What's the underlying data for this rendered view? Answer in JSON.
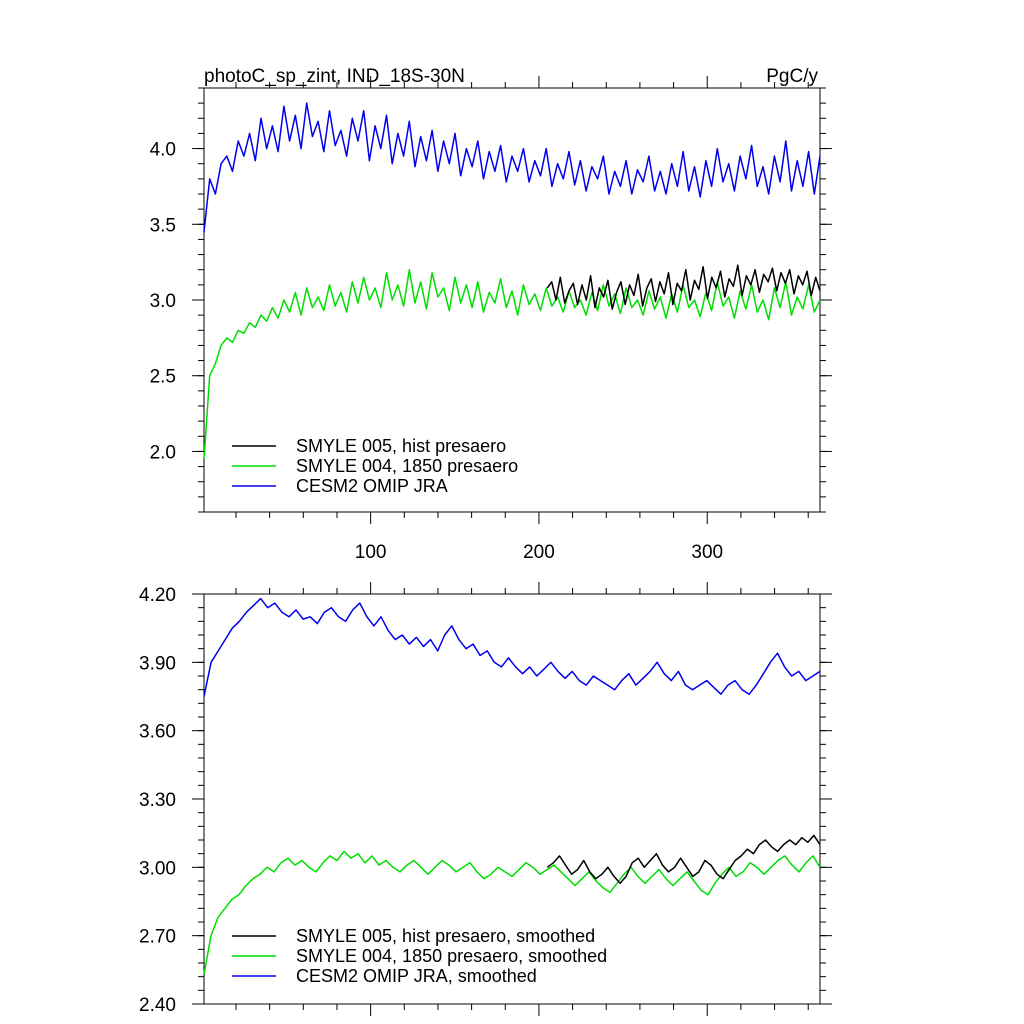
{
  "chart_data": [
    {
      "type": "line",
      "title": "photoC_sp_zint, IND_18S-30N",
      "units": "PgC/y",
      "xlim": [
        1,
        367
      ],
      "ylim": [
        1.6,
        4.4
      ],
      "x_ticks": [
        100,
        200,
        300
      ],
      "x_tick_labels": [
        "100",
        "200",
        "300"
      ],
      "y_ticks": [
        2.0,
        2.5,
        3.0,
        3.5,
        4.0
      ],
      "y_tick_labels": [
        "2.0",
        "2.5",
        "3.0",
        "3.5",
        "4.0"
      ],
      "legend_position": "lower-left",
      "series": [
        {
          "name": "SMYLE 005, hist presaero",
          "color": "#000000",
          "x_start": 205,
          "x_end": 367,
          "values": [
            3.08,
            3.12,
            3.0,
            3.15,
            2.98,
            3.06,
            3.11,
            2.97,
            3.1,
            3.0,
            3.16,
            2.95,
            3.08,
            3.02,
            3.13,
            2.94,
            3.05,
            3.12,
            2.97,
            3.1,
            3.03,
            3.17,
            2.96,
            3.08,
            3.14,
            2.99,
            3.12,
            3.04,
            3.18,
            2.97,
            3.11,
            3.06,
            3.2,
            3.0,
            3.13,
            3.07,
            3.22,
            3.01,
            3.15,
            3.08,
            3.19,
            3.02,
            3.14,
            3.09,
            3.23,
            3.03,
            3.16,
            3.1,
            3.2,
            3.05,
            3.17,
            3.12,
            3.21,
            3.06,
            3.18,
            3.11,
            3.2,
            3.04,
            3.16,
            3.1,
            3.19,
            3.03,
            3.15,
            3.06
          ]
        },
        {
          "name": "SMYLE 004, 1850 presaero",
          "color": "#00dd00",
          "x_start": 1,
          "x_end": 367,
          "values": [
            1.95,
            2.5,
            2.58,
            2.7,
            2.75,
            2.72,
            2.8,
            2.78,
            2.85,
            2.82,
            2.9,
            2.86,
            2.95,
            2.88,
            3.0,
            2.92,
            3.05,
            2.9,
            3.08,
            2.95,
            3.02,
            2.93,
            3.1,
            2.96,
            3.05,
            2.92,
            3.12,
            2.98,
            3.15,
            3.0,
            3.08,
            2.95,
            3.18,
            3.0,
            3.1,
            2.96,
            3.2,
            2.98,
            3.12,
            2.94,
            3.18,
            3.02,
            3.08,
            2.93,
            3.15,
            2.98,
            3.1,
            2.95,
            3.12,
            2.92,
            3.05,
            2.98,
            3.14,
            2.95,
            3.06,
            2.9,
            3.1,
            2.97,
            3.04,
            2.93,
            3.08,
            2.96,
            3.02,
            2.92,
            3.06,
            2.95,
            3.0,
            2.9,
            3.05,
            2.93,
            3.1,
            2.96,
            3.04,
            2.91,
            3.08,
            2.95,
            3.0,
            2.9,
            3.06,
            2.94,
            3.02,
            2.88,
            3.04,
            2.92,
            3.1,
            2.95,
            3.0,
            2.89,
            3.05,
            2.93,
            3.12,
            2.96,
            3.02,
            2.88,
            3.06,
            2.94,
            3.1,
            2.92,
            3.0,
            2.87,
            3.08,
            2.95,
            3.12,
            2.9,
            3.02,
            2.94,
            3.1,
            2.92,
            3.0
          ]
        },
        {
          "name": "CESM2 OMIP JRA",
          "color": "#0000ee",
          "x_start": 1,
          "x_end": 367,
          "values": [
            3.45,
            3.8,
            3.7,
            3.9,
            3.95,
            3.85,
            4.05,
            3.95,
            4.1,
            3.92,
            4.2,
            4.0,
            4.15,
            3.98,
            4.28,
            4.05,
            4.22,
            4.0,
            4.3,
            4.08,
            4.18,
            3.98,
            4.25,
            4.02,
            4.12,
            3.95,
            4.2,
            4.05,
            4.25,
            3.92,
            4.15,
            4.0,
            4.22,
            3.9,
            4.1,
            3.95,
            4.18,
            3.88,
            4.08,
            3.92,
            4.12,
            3.85,
            4.05,
            3.9,
            4.1,
            3.82,
            4.0,
            3.88,
            4.05,
            3.8,
            3.98,
            3.85,
            4.02,
            3.78,
            3.95,
            3.85,
            4.0,
            3.78,
            3.92,
            3.82,
            4.0,
            3.75,
            3.9,
            3.8,
            3.98,
            3.76,
            3.92,
            3.72,
            3.88,
            3.8,
            3.95,
            3.7,
            3.85,
            3.75,
            3.92,
            3.7,
            3.86,
            3.78,
            3.95,
            3.72,
            3.85,
            3.7,
            3.9,
            3.75,
            3.98,
            3.72,
            3.88,
            3.68,
            3.92,
            3.75,
            4.0,
            3.78,
            3.9,
            3.72,
            3.95,
            3.8,
            4.02,
            3.75,
            3.88,
            3.7,
            3.95,
            3.78,
            4.05,
            3.72,
            3.92,
            3.75,
            3.98,
            3.7,
            3.95
          ]
        }
      ]
    },
    {
      "type": "line",
      "xlim": [
        1,
        367
      ],
      "ylim": [
        2.4,
        4.2
      ],
      "x_ticks": [
        100,
        200,
        300
      ],
      "y_ticks": [
        2.4,
        2.7,
        3.0,
        3.3,
        3.6,
        3.9,
        4.2
      ],
      "y_tick_labels": [
        "2.40",
        "2.70",
        "3.00",
        "3.30",
        "3.60",
        "3.90",
        "4.20"
      ],
      "legend_position": "lower-left",
      "series": [
        {
          "name": "SMYLE 005, hist presaero, smoothed",
          "color": "#000000",
          "x_start": 205,
          "x_end": 367,
          "values": [
            3.0,
            3.02,
            3.05,
            3.01,
            2.97,
            2.99,
            3.03,
            2.98,
            2.95,
            2.97,
            3.0,
            2.96,
            2.93,
            2.96,
            3.02,
            3.04,
            3.0,
            3.03,
            3.06,
            3.01,
            2.98,
            3.0,
            3.04,
            3.0,
            2.96,
            2.98,
            3.03,
            3.01,
            2.97,
            2.95,
            2.99,
            3.03,
            3.05,
            3.08,
            3.06,
            3.1,
            3.12,
            3.09,
            3.07,
            3.1,
            3.12,
            3.1,
            3.13,
            3.11,
            3.14,
            3.1
          ]
        },
        {
          "name": "SMYLE 004, 1850 presaero, smoothed",
          "color": "#00dd00",
          "x_start": 1,
          "x_end": 367,
          "values": [
            2.53,
            2.7,
            2.78,
            2.82,
            2.86,
            2.88,
            2.92,
            2.95,
            2.97,
            3.0,
            2.98,
            3.02,
            3.04,
            3.01,
            3.03,
            3.0,
            2.98,
            3.02,
            3.05,
            3.03,
            3.07,
            3.04,
            3.06,
            3.02,
            3.05,
            3.01,
            3.03,
            3.0,
            2.98,
            3.01,
            3.03,
            3.0,
            2.97,
            3.0,
            3.03,
            3.01,
            2.98,
            3.0,
            3.02,
            2.98,
            2.95,
            2.97,
            3.0,
            2.98,
            2.96,
            2.99,
            3.02,
            3.0,
            2.97,
            2.99,
            3.01,
            2.98,
            2.95,
            2.92,
            2.95,
            2.98,
            2.94,
            2.91,
            2.89,
            2.93,
            2.97,
            3.0,
            2.96,
            2.93,
            2.96,
            2.99,
            2.95,
            2.92,
            2.95,
            2.98,
            2.94,
            2.9,
            2.88,
            2.93,
            2.97,
            3.0,
            2.96,
            2.98,
            3.02,
            3.0,
            2.97,
            3.0,
            3.03,
            3.05,
            3.01,
            2.98,
            3.02,
            3.05,
            3.0
          ]
        },
        {
          "name": "CESM2 OMIP JRA, smoothed",
          "color": "#0000ee",
          "x_start": 1,
          "x_end": 367,
          "values": [
            3.75,
            3.9,
            3.95,
            4.0,
            4.05,
            4.08,
            4.12,
            4.15,
            4.18,
            4.14,
            4.16,
            4.12,
            4.1,
            4.13,
            4.09,
            4.1,
            4.07,
            4.12,
            4.14,
            4.1,
            4.08,
            4.13,
            4.16,
            4.1,
            4.06,
            4.1,
            4.04,
            4.0,
            4.02,
            3.98,
            4.01,
            3.97,
            4.0,
            3.95,
            4.02,
            4.06,
            4.0,
            3.96,
            3.98,
            3.93,
            3.95,
            3.9,
            3.88,
            3.92,
            3.88,
            3.85,
            3.88,
            3.84,
            3.87,
            3.9,
            3.86,
            3.83,
            3.86,
            3.82,
            3.8,
            3.84,
            3.82,
            3.8,
            3.78,
            3.82,
            3.85,
            3.8,
            3.83,
            3.86,
            3.9,
            3.85,
            3.82,
            3.86,
            3.8,
            3.78,
            3.8,
            3.82,
            3.79,
            3.76,
            3.8,
            3.82,
            3.78,
            3.76,
            3.8,
            3.85,
            3.9,
            3.94,
            3.88,
            3.84,
            3.86,
            3.82,
            3.84,
            3.86
          ]
        }
      ]
    }
  ]
}
